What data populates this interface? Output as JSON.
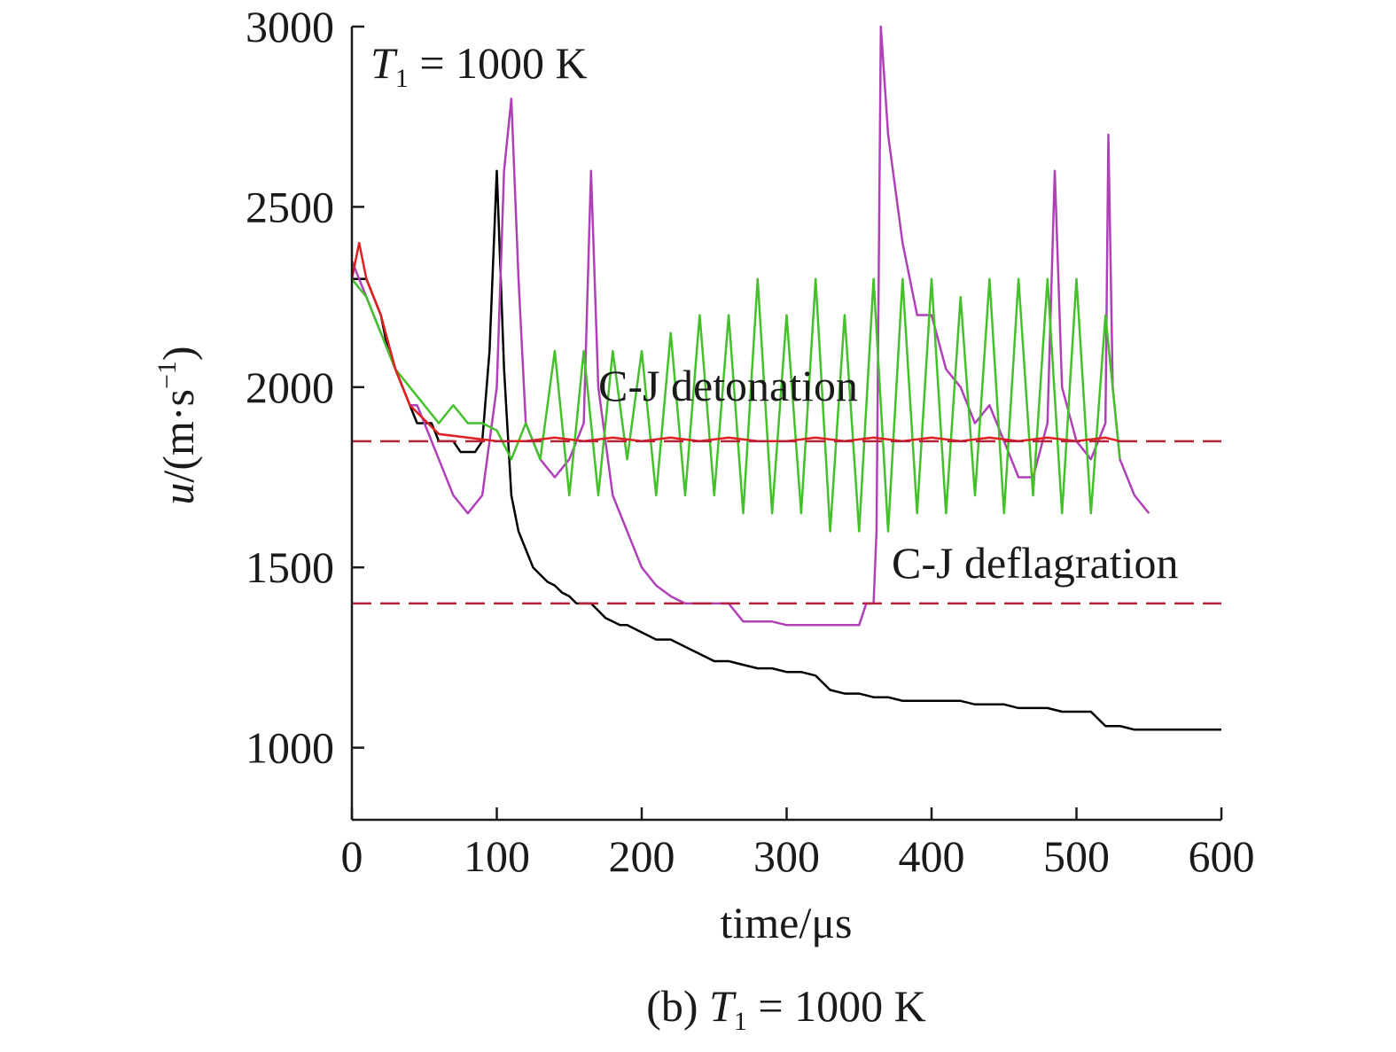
{
  "chart_data": {
    "type": "line",
    "title": "",
    "inset_label": {
      "var": "T",
      "sub": "1",
      "rest": " = 1000 K"
    },
    "caption": {
      "prefix": "(b) ",
      "var": "T",
      "sub": "1",
      "rest": " = 1000 K"
    },
    "xlabel": "time/μs",
    "ylabel": {
      "var": "u",
      "rest": "/(m·s",
      "sup": "−1",
      "close": ")"
    },
    "xlim": [
      0,
      600
    ],
    "ylim": [
      800,
      3000
    ],
    "xticks": [
      0,
      100,
      200,
      300,
      400,
      500,
      600
    ],
    "yticks": [
      1000,
      1500,
      2000,
      2500,
      3000
    ],
    "xtick_labels": [
      "0",
      "100",
      "200",
      "300",
      "400",
      "500",
      "600"
    ],
    "ytick_labels": [
      "1000",
      "1500",
      "2000",
      "2500",
      "3000"
    ],
    "grid": false,
    "reference_lines": [
      {
        "label": "C-J detonation",
        "y": 1850,
        "color": "#b5223a"
      },
      {
        "label": "C-J deflagration",
        "y": 1400,
        "color": "#b5223a"
      }
    ],
    "series": [
      {
        "color": "#000000",
        "x": [
          0,
          5,
          10,
          15,
          20,
          25,
          30,
          35,
          40,
          45,
          50,
          55,
          60,
          65,
          70,
          75,
          80,
          85,
          90,
          95,
          100,
          105,
          110,
          115,
          120,
          125,
          130,
          135,
          140,
          145,
          150,
          155,
          160,
          165,
          170,
          175,
          180,
          185,
          190,
          195,
          200,
          210,
          220,
          230,
          240,
          250,
          260,
          270,
          280,
          290,
          300,
          310,
          320,
          330,
          340,
          350,
          360,
          370,
          380,
          390,
          400,
          410,
          420,
          430,
          440,
          450,
          460,
          470,
          480,
          490,
          500,
          510,
          520,
          530,
          540,
          550,
          560,
          570,
          580,
          590,
          600
        ],
        "y": [
          2300,
          2300,
          2300,
          2250,
          2200,
          2100,
          2050,
          2000,
          1950,
          1900,
          1900,
          1900,
          1850,
          1850,
          1850,
          1820,
          1820,
          1820,
          1850,
          2100,
          2600,
          2050,
          1700,
          1600,
          1550,
          1500,
          1480,
          1460,
          1450,
          1430,
          1420,
          1400,
          1400,
          1400,
          1380,
          1360,
          1350,
          1340,
          1340,
          1330,
          1320,
          1300,
          1300,
          1280,
          1260,
          1240,
          1240,
          1230,
          1220,
          1220,
          1210,
          1210,
          1200,
          1160,
          1150,
          1150,
          1140,
          1140,
          1130,
          1130,
          1130,
          1130,
          1130,
          1120,
          1120,
          1120,
          1110,
          1110,
          1110,
          1100,
          1100,
          1100,
          1060,
          1060,
          1050,
          1050,
          1050,
          1050,
          1050,
          1050,
          1050
        ]
      },
      {
        "color": "#b040b8",
        "x": [
          0,
          5,
          10,
          15,
          20,
          25,
          30,
          35,
          40,
          45,
          50,
          60,
          70,
          80,
          90,
          100,
          105,
          110,
          115,
          120,
          130,
          140,
          150,
          160,
          165,
          170,
          180,
          190,
          200,
          210,
          220,
          230,
          240,
          250,
          260,
          270,
          280,
          290,
          300,
          310,
          320,
          330,
          340,
          350,
          355,
          360,
          362,
          365,
          370,
          380,
          390,
          400,
          410,
          420,
          430,
          440,
          450,
          460,
          470,
          480,
          485,
          490,
          500,
          510,
          520,
          522,
          525,
          530,
          540,
          550
        ],
        "y": [
          2350,
          2300,
          2250,
          2200,
          2150,
          2100,
          2050,
          2000,
          1950,
          1950,
          1900,
          1800,
          1700,
          1650,
          1700,
          2000,
          2600,
          2800,
          2300,
          1900,
          1800,
          1750,
          1800,
          1900,
          2600,
          2000,
          1700,
          1600,
          1500,
          1450,
          1420,
          1400,
          1400,
          1400,
          1400,
          1350,
          1350,
          1350,
          1340,
          1340,
          1340,
          1340,
          1340,
          1340,
          1400,
          1400,
          1600,
          3000,
          2700,
          2400,
          2200,
          2200,
          2050,
          2000,
          1900,
          1950,
          1850,
          1750,
          1750,
          1900,
          2600,
          2000,
          1850,
          1800,
          1900,
          2700,
          2000,
          1800,
          1700,
          1650
        ]
      },
      {
        "color": "#44c12a",
        "x": [
          0,
          10,
          20,
          30,
          40,
          50,
          60,
          70,
          80,
          90,
          100,
          110,
          120,
          130,
          140,
          150,
          160,
          170,
          180,
          190,
          200,
          210,
          220,
          230,
          240,
          250,
          260,
          270,
          280,
          290,
          300,
          310,
          320,
          330,
          340,
          350,
          360,
          370,
          380,
          390,
          400,
          410,
          420,
          430,
          440,
          450,
          460,
          470,
          480,
          490,
          500,
          510,
          520,
          530
        ],
        "y": [
          2300,
          2250,
          2150,
          2050,
          2000,
          1950,
          1900,
          1950,
          1900,
          1900,
          1880,
          1800,
          1900,
          1800,
          2100,
          1700,
          2100,
          1700,
          2100,
          1800,
          2100,
          1700,
          2150,
          1700,
          2200,
          1700,
          2200,
          1650,
          2300,
          1650,
          2200,
          1650,
          2300,
          1600,
          2200,
          1600,
          2300,
          1600,
          2300,
          1650,
          2300,
          1650,
          2250,
          1700,
          2300,
          1650,
          2300,
          1700,
          2300,
          1650,
          2300,
          1650,
          2200,
          1800
        ]
      },
      {
        "color": "#e02020",
        "x": [
          0,
          5,
          10,
          20,
          30,
          40,
          60,
          80,
          100,
          120,
          140,
          160,
          180,
          200,
          220,
          240,
          260,
          280,
          300,
          320,
          340,
          360,
          380,
          400,
          420,
          440,
          460,
          480,
          500,
          520,
          530
        ],
        "y": [
          2300,
          2400,
          2300,
          2200,
          2050,
          1950,
          1870,
          1860,
          1850,
          1850,
          1860,
          1850,
          1860,
          1850,
          1860,
          1850,
          1860,
          1850,
          1850,
          1860,
          1850,
          1860,
          1850,
          1860,
          1850,
          1860,
          1850,
          1860,
          1850,
          1860,
          1850
        ]
      }
    ]
  }
}
